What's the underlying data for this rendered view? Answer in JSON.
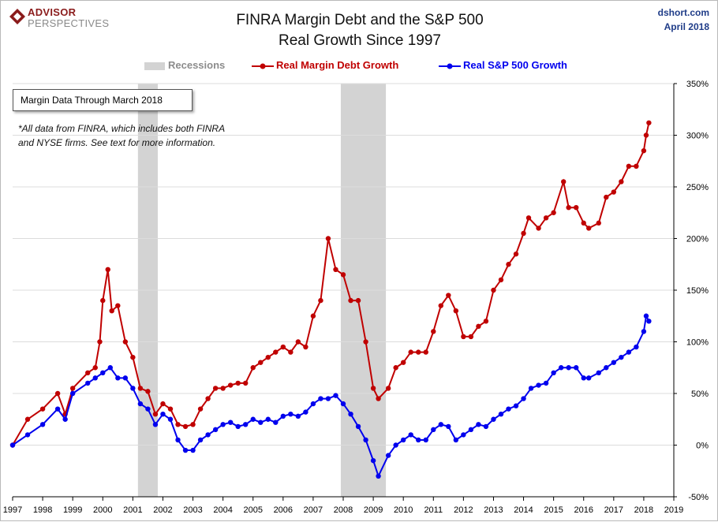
{
  "header": {
    "logo_line1": "ADVISOR",
    "logo_line2": "PERSPECTIVES",
    "title_line1": "FINRA Margin Debt and the S&P 500",
    "title_line2": "Real Growth Since 1997",
    "source": "dshort.com",
    "date": "April 2018"
  },
  "annotations": {
    "box": "Margin Data Through March 2018",
    "note_line1": "*All data from FINRA, which includes both FINRA",
    "note_line2": "and NYSE firms. See text for more information."
  },
  "colors": {
    "margin": "#c00000",
    "sp500": "#0000ee",
    "recession": "#d3d3d3",
    "grid": "#dcdcdc",
    "axis": "#000000"
  },
  "chart_data": {
    "type": "line",
    "title": "FINRA Margin Debt and the S&P 500 Real Growth Since 1997",
    "xlabel": "",
    "ylabel": "",
    "xlim": [
      1997,
      2019
    ],
    "ylim": [
      -50,
      350
    ],
    "x_ticks": [
      "1997",
      "1998",
      "1999",
      "2000",
      "2001",
      "2002",
      "2003",
      "2004",
      "2005",
      "2006",
      "2007",
      "2008",
      "2009",
      "2010",
      "2011",
      "2012",
      "2013",
      "2014",
      "2015",
      "2016",
      "2017",
      "2018",
      "2019"
    ],
    "y_ticks": [
      "-50%",
      "0%",
      "50%",
      "100%",
      "150%",
      "200%",
      "250%",
      "300%",
      "350%"
    ],
    "grid": "horizontal",
    "legend_position": "top-center",
    "recessions": [
      {
        "label": "Recessions",
        "start": 2001.17,
        "end": 2001.83
      },
      {
        "label": "Recessions",
        "start": 2007.92,
        "end": 2009.42
      }
    ],
    "series": [
      {
        "name": "Real Margin Debt Growth",
        "x": [
          1997.0,
          1997.5,
          1998.0,
          1998.5,
          1998.75,
          1999.0,
          1999.5,
          1999.75,
          1999.9,
          2000.0,
          2000.17,
          2000.3,
          2000.5,
          2000.75,
          2001.0,
          2001.25,
          2001.5,
          2001.75,
          2002.0,
          2002.25,
          2002.5,
          2002.75,
          2003.0,
          2003.25,
          2003.5,
          2003.75,
          2004.0,
          2004.25,
          2004.5,
          2004.75,
          2005.0,
          2005.25,
          2005.5,
          2005.75,
          2006.0,
          2006.25,
          2006.5,
          2006.75,
          2007.0,
          2007.25,
          2007.5,
          2007.75,
          2008.0,
          2008.25,
          2008.5,
          2008.75,
          2009.0,
          2009.17,
          2009.5,
          2009.75,
          2010.0,
          2010.25,
          2010.5,
          2010.75,
          2011.0,
          2011.25,
          2011.5,
          2011.75,
          2012.0,
          2012.25,
          2012.5,
          2012.75,
          2013.0,
          2013.25,
          2013.5,
          2013.75,
          2014.0,
          2014.17,
          2014.5,
          2014.75,
          2015.0,
          2015.33,
          2015.5,
          2015.75,
          2016.0,
          2016.17,
          2016.5,
          2016.75,
          2017.0,
          2017.25,
          2017.5,
          2017.75,
          2018.0,
          2018.08,
          2018.17
        ],
        "values": [
          0,
          25,
          35,
          50,
          30,
          55,
          70,
          75,
          100,
          140,
          170,
          130,
          135,
          100,
          85,
          55,
          52,
          30,
          40,
          35,
          20,
          18,
          20,
          35,
          45,
          55,
          55,
          58,
          60,
          60,
          75,
          80,
          85,
          90,
          95,
          90,
          100,
          95,
          125,
          140,
          200,
          170,
          165,
          140,
          140,
          100,
          55,
          45,
          55,
          75,
          80,
          90,
          90,
          90,
          110,
          135,
          145,
          130,
          105,
          105,
          115,
          120,
          150,
          160,
          175,
          185,
          205,
          220,
          210,
          220,
          225,
          255,
          230,
          230,
          215,
          210,
          215,
          240,
          245,
          255,
          270,
          270,
          285,
          300,
          312
        ]
      },
      {
        "name": "Real S&P 500 Growth",
        "x": [
          1997.0,
          1997.5,
          1998.0,
          1998.5,
          1998.75,
          1999.0,
          1999.5,
          1999.75,
          2000.0,
          2000.25,
          2000.5,
          2000.75,
          2001.0,
          2001.25,
          2001.5,
          2001.75,
          2002.0,
          2002.25,
          2002.5,
          2002.75,
          2003.0,
          2003.25,
          2003.5,
          2003.75,
          2004.0,
          2004.25,
          2004.5,
          2004.75,
          2005.0,
          2005.25,
          2005.5,
          2005.75,
          2006.0,
          2006.25,
          2006.5,
          2006.75,
          2007.0,
          2007.25,
          2007.5,
          2007.75,
          2008.0,
          2008.25,
          2008.5,
          2008.75,
          2009.0,
          2009.17,
          2009.5,
          2009.75,
          2010.0,
          2010.25,
          2010.5,
          2010.75,
          2011.0,
          2011.25,
          2011.5,
          2011.75,
          2012.0,
          2012.25,
          2012.5,
          2012.75,
          2013.0,
          2013.25,
          2013.5,
          2013.75,
          2014.0,
          2014.25,
          2014.5,
          2014.75,
          2015.0,
          2015.25,
          2015.5,
          2015.75,
          2016.0,
          2016.17,
          2016.5,
          2016.75,
          2017.0,
          2017.25,
          2017.5,
          2017.75,
          2018.0,
          2018.08,
          2018.17
        ],
        "values": [
          0,
          10,
          20,
          35,
          25,
          50,
          60,
          65,
          70,
          75,
          65,
          65,
          55,
          40,
          35,
          20,
          30,
          25,
          5,
          -5,
          -5,
          5,
          10,
          15,
          20,
          22,
          18,
          20,
          25,
          22,
          25,
          22,
          28,
          30,
          28,
          32,
          40,
          45,
          45,
          48,
          40,
          30,
          18,
          5,
          -15,
          -30,
          -10,
          0,
          5,
          10,
          5,
          5,
          15,
          20,
          18,
          5,
          10,
          15,
          20,
          18,
          25,
          30,
          35,
          38,
          45,
          55,
          58,
          60,
          70,
          75,
          75,
          75,
          65,
          65,
          70,
          75,
          80,
          85,
          90,
          95,
          110,
          125,
          120
        ]
      }
    ]
  }
}
